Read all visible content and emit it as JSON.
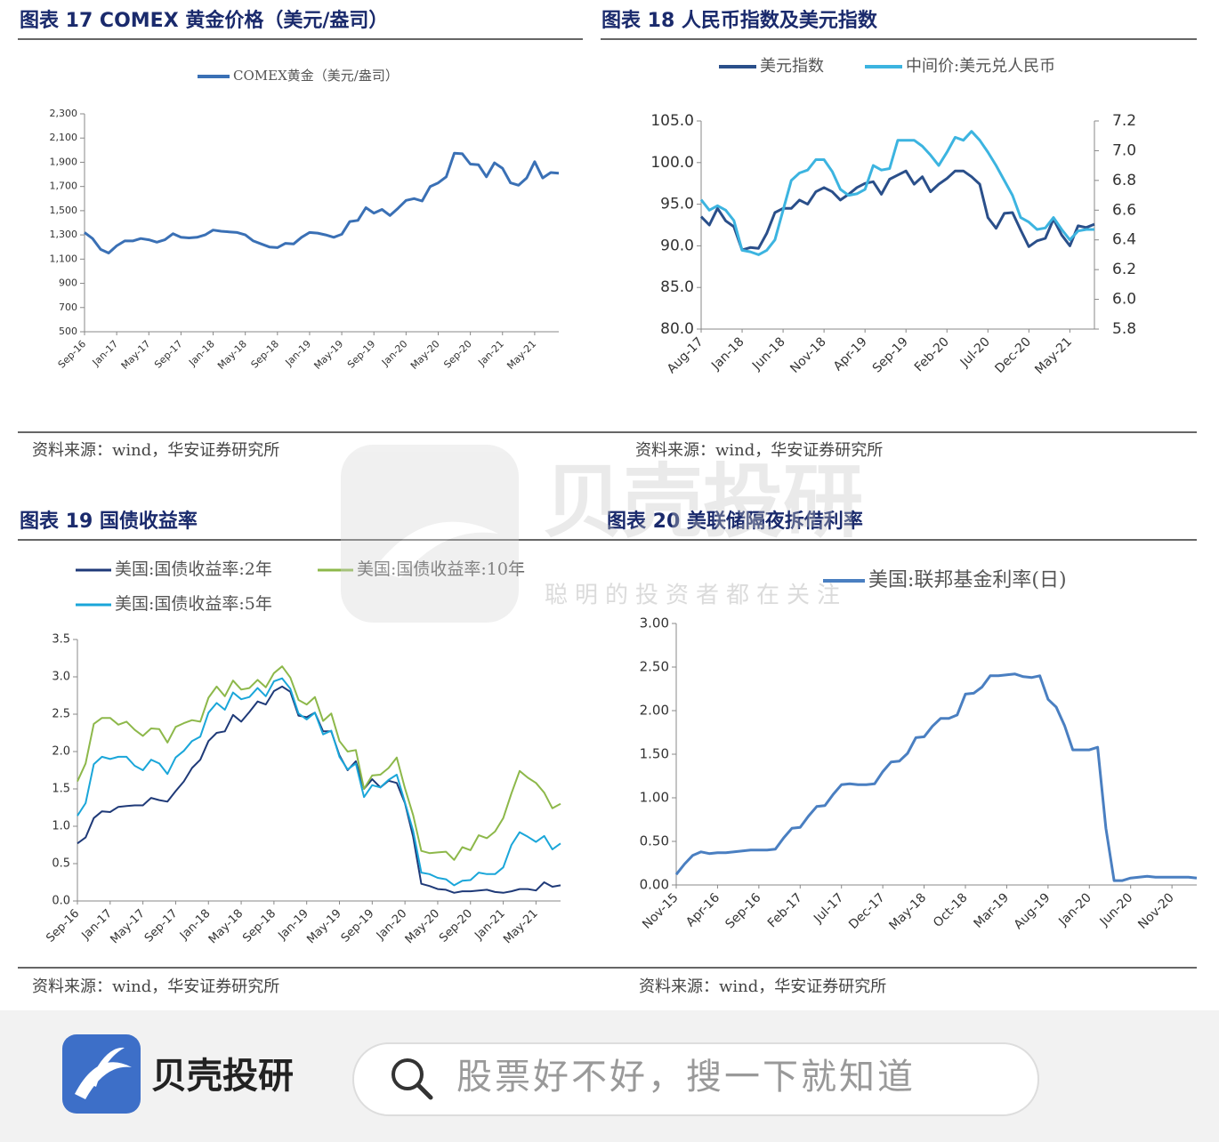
{
  "chart_data": [
    {
      "type": "line",
      "title": "图表 17 COMEX 黄金价格（美元/盎司）",
      "source": "资料来源：wind，华安证券研究所",
      "categories": [
        "Sep-16",
        null,
        null,
        null,
        "Jan-17",
        null,
        null,
        null,
        "May-17",
        null,
        null,
        null,
        "Sep-17",
        null,
        null,
        null,
        "Jan-18",
        null,
        null,
        null,
        "May-18",
        null,
        null,
        null,
        "Sep-18",
        null,
        null,
        null,
        "Jan-19",
        null,
        null,
        null,
        "May-19",
        null,
        null,
        null,
        "Sep-19",
        null,
        null,
        null,
        "Jan-20",
        null,
        null,
        null,
        "May-20",
        null,
        null,
        null,
        "Sep-20",
        null,
        null,
        null,
        "Jan-21",
        null,
        null,
        null,
        "May-21",
        null,
        null,
        null
      ],
      "series": [
        {
          "name": "COMEX黄金（美元/盎司）",
          "color": "#3a70b5",
          "values": [
            1320,
            1270,
            1180,
            1150,
            1210,
            1250,
            1250,
            1270,
            1260,
            1240,
            1260,
            1310,
            1280,
            1275,
            1280,
            1300,
            1340,
            1330,
            1325,
            1320,
            1300,
            1250,
            1225,
            1200,
            1195,
            1230,
            1225,
            1280,
            1320,
            1315,
            1300,
            1280,
            1305,
            1410,
            1420,
            1525,
            1480,
            1510,
            1460,
            1520,
            1585,
            1600,
            1580,
            1700,
            1730,
            1780,
            1975,
            1970,
            1885,
            1880,
            1780,
            1895,
            1850,
            1730,
            1710,
            1770,
            1905,
            1770,
            1815,
            1810
          ]
        }
      ],
      "ylim": [
        500,
        2300
      ],
      "yticks": [
        500,
        700,
        900,
        {
          "value": 1100,
          "label": "1,100"
        },
        {
          "value": 1300,
          "label": "1,300"
        },
        {
          "value": 1500,
          "label": "1,500"
        },
        {
          "value": 1700,
          "label": "1,700"
        },
        {
          "value": 1900,
          "label": "1,900"
        },
        {
          "value": 2100,
          "label": "2,100"
        },
        {
          "value": 2300,
          "label": "2,300"
        }
      ]
    },
    {
      "type": "line",
      "title": "图表 18 人民币指数及美元指数",
      "source": "资料来源：wind，华安证券研究所",
      "categories": [
        "Aug-17",
        null,
        null,
        null,
        null,
        "Jan-18",
        null,
        null,
        null,
        null,
        "Jun-18",
        null,
        null,
        null,
        null,
        "Nov-18",
        null,
        null,
        null,
        null,
        "Apr-19",
        null,
        null,
        null,
        null,
        "Sep-19",
        null,
        null,
        null,
        null,
        "Feb-20",
        null,
        null,
        null,
        null,
        "Jul-20",
        null,
        null,
        null,
        null,
        "Dec-20",
        null,
        null,
        null,
        null,
        "May-21",
        null,
        null,
        null
      ],
      "series": [
        {
          "name": "美元指数",
          "color": "#2a4f8a",
          "values": [
            93.5,
            92.5,
            94.5,
            93,
            92.3,
            89.5,
            89.8,
            89.7,
            91.5,
            94,
            94.5,
            94.5,
            95.5,
            95,
            96.5,
            97,
            96.5,
            95.5,
            96.2,
            97,
            97.5,
            97.7,
            96.2,
            98,
            98.5,
            99,
            97.4,
            98.3,
            96.5,
            97.4,
            98.1,
            99,
            99,
            98.3,
            97.4,
            93.4,
            92.1,
            93.9,
            94,
            91.9,
            89.9,
            90.6,
            90.9,
            93.2,
            91.3,
            90,
            92.4,
            92.2,
            92.6
          ]
        },
        {
          "name": "中间价:美元兑人民币",
          "color": "#3cb4e0",
          "axis": "y2",
          "values": [
            6.67,
            6.6,
            6.63,
            6.6,
            6.53,
            6.33,
            6.32,
            6.3,
            6.33,
            6.4,
            6.6,
            6.8,
            6.85,
            6.87,
            6.94,
            6.94,
            6.86,
            6.74,
            6.7,
            6.71,
            6.74,
            6.9,
            6.87,
            6.88,
            7.07,
            7.07,
            7.07,
            7.03,
            6.97,
            6.9,
            6.99,
            7.09,
            7.07,
            7.13,
            7.07,
            6.99,
            6.9,
            6.8,
            6.7,
            6.55,
            6.52,
            6.47,
            6.48,
            6.55,
            6.47,
            6.4,
            6.46,
            6.47,
            6.47
          ]
        }
      ],
      "ylim": [
        80,
        105
      ],
      "yticks": [
        {
          "value": 80,
          "label": "80.0"
        },
        {
          "value": 85,
          "label": "85.0"
        },
        {
          "value": 90,
          "label": "90.0"
        },
        {
          "value": 95,
          "label": "95.0"
        },
        {
          "value": 100,
          "label": "100.0"
        },
        {
          "value": 105,
          "label": "105.0"
        }
      ],
      "y2lim": [
        5.8,
        7.2
      ],
      "y2ticks": [
        5.8,
        {
          "value": 6,
          "label": "6.0"
        },
        6.2,
        6.4,
        6.6,
        6.8,
        {
          "value": 7,
          "label": "7.0"
        },
        7.2
      ]
    },
    {
      "type": "line",
      "title": "图表 19 国债收益率",
      "source": "资料来源：wind，华安证券研究所",
      "categories": [
        "Sep-16",
        null,
        null,
        null,
        "Jan-17",
        null,
        null,
        null,
        "May-17",
        null,
        null,
        null,
        "Sep-17",
        null,
        null,
        null,
        "Jan-18",
        null,
        null,
        null,
        "May-18",
        null,
        null,
        null,
        "Sep-18",
        null,
        null,
        null,
        "Jan-19",
        null,
        null,
        null,
        "May-19",
        null,
        null,
        null,
        "Sep-19",
        null,
        null,
        null,
        "Jan-20",
        null,
        null,
        null,
        "May-20",
        null,
        null,
        null,
        "Sep-20",
        null,
        null,
        null,
        "Jan-21",
        null,
        null,
        null,
        "May-21",
        null,
        null,
        null
      ],
      "series": [
        {
          "name": "美国:国债收益率:2年",
          "color": "#1f3a78",
          "values": [
            0.77,
            0.85,
            1.11,
            1.2,
            1.19,
            1.26,
            1.27,
            1.28,
            1.28,
            1.38,
            1.35,
            1.33,
            1.47,
            1.6,
            1.78,
            1.89,
            2.14,
            2.25,
            2.27,
            2.49,
            2.4,
            2.53,
            2.67,
            2.63,
            2.81,
            2.87,
            2.8,
            2.48,
            2.46,
            2.52,
            2.27,
            2.27,
            1.95,
            1.75,
            1.87,
            1.5,
            1.63,
            1.52,
            1.61,
            1.58,
            1.31,
            0.86,
            0.23,
            0.2,
            0.16,
            0.15,
            0.11,
            0.13,
            0.13,
            0.14,
            0.15,
            0.12,
            0.11,
            0.13,
            0.16,
            0.16,
            0.14,
            0.25,
            0.19,
            0.21
          ]
        },
        {
          "name": "美国:国债收益率:10年",
          "color": "#8db84a",
          "values": [
            1.6,
            1.84,
            2.37,
            2.45,
            2.45,
            2.36,
            2.4,
            2.29,
            2.21,
            2.31,
            2.3,
            2.12,
            2.33,
            2.38,
            2.42,
            2.4,
            2.72,
            2.87,
            2.74,
            2.95,
            2.83,
            2.85,
            2.96,
            2.86,
            3.05,
            3.14,
            2.99,
            2.69,
            2.63,
            2.73,
            2.41,
            2.51,
            2.14,
            2.0,
            2.02,
            1.5,
            1.68,
            1.69,
            1.78,
            1.92,
            1.51,
            1.15,
            0.67,
            0.64,
            0.65,
            0.66,
            0.55,
            0.72,
            0.68,
            0.88,
            0.84,
            0.93,
            1.11,
            1.44,
            1.74,
            1.65,
            1.58,
            1.45,
            1.24,
            1.3
          ]
        },
        {
          "name": "美国:国债收益率:5年",
          "color": "#1aa6d9",
          "values": [
            1.14,
            1.31,
            1.83,
            1.93,
            1.9,
            1.93,
            1.93,
            1.81,
            1.75,
            1.89,
            1.84,
            1.7,
            1.92,
            2.01,
            2.14,
            2.2,
            2.52,
            2.65,
            2.56,
            2.79,
            2.7,
            2.73,
            2.85,
            2.74,
            2.94,
            2.98,
            2.84,
            2.51,
            2.43,
            2.52,
            2.23,
            2.28,
            1.93,
            1.76,
            1.84,
            1.39,
            1.55,
            1.52,
            1.62,
            1.69,
            1.32,
            0.94,
            0.38,
            0.36,
            0.31,
            0.29,
            0.21,
            0.27,
            0.28,
            0.38,
            0.36,
            0.36,
            0.45,
            0.75,
            0.92,
            0.86,
            0.79,
            0.87,
            0.69,
            0.77
          ]
        }
      ],
      "ylim": [
        0,
        3.5
      ],
      "yticks": [
        {
          "value": 0,
          "label": "0.0"
        },
        0.5,
        {
          "value": 1,
          "label": "1.0"
        },
        1.5,
        {
          "value": 2,
          "label": "2.0"
        },
        2.5,
        {
          "value": 3,
          "label": "3.0"
        },
        3.5
      ]
    },
    {
      "type": "line",
      "title": "图表 20 美联储隔夜拆借利率",
      "source": "资料来源：wind，华安证券研究所",
      "categories": [
        "Nov-15",
        null,
        null,
        null,
        null,
        "Apr-16",
        null,
        null,
        null,
        null,
        "Sep-16",
        null,
        null,
        null,
        null,
        "Feb-17",
        null,
        null,
        null,
        null,
        "Jul-17",
        null,
        null,
        null,
        null,
        "Dec-17",
        null,
        null,
        null,
        null,
        "May-18",
        null,
        null,
        null,
        null,
        "Oct-18",
        null,
        null,
        null,
        null,
        "Mar-19",
        null,
        null,
        null,
        null,
        "Aug-19",
        null,
        null,
        null,
        null,
        "Jan-20",
        null,
        null,
        null,
        null,
        "Jun-20",
        null,
        null,
        null,
        null,
        "Nov-20",
        null,
        null,
        null
      ],
      "series": [
        {
          "name": "美国:联邦基金利率(日)",
          "color": "#4a7fc1",
          "values": [
            0.12,
            0.24,
            0.34,
            0.38,
            0.36,
            0.37,
            0.37,
            0.38,
            0.39,
            0.4,
            0.4,
            0.4,
            0.41,
            0.54,
            0.65,
            0.66,
            0.79,
            0.9,
            0.91,
            1.04,
            1.15,
            1.16,
            1.15,
            1.15,
            1.16,
            1.3,
            1.41,
            1.42,
            1.51,
            1.69,
            1.7,
            1.82,
            1.91,
            1.91,
            1.95,
            2.19,
            2.2,
            2.27,
            2.4,
            2.4,
            2.41,
            2.42,
            2.39,
            2.38,
            2.4,
            2.13,
            2.04,
            1.83,
            1.55,
            1.55,
            1.55,
            1.58,
            0.65,
            0.05,
            0.05,
            0.08,
            0.09,
            0.1,
            0.09,
            0.09,
            0.09,
            0.09,
            0.09,
            0.08
          ]
        }
      ],
      "ylim": [
        0,
        3
      ],
      "yticks": [
        {
          "value": 0,
          "label": "0.00"
        },
        {
          "value": 0.5,
          "label": "0.50"
        },
        {
          "value": 1,
          "label": "1.00"
        },
        {
          "value": 1.5,
          "label": "1.50"
        },
        {
          "value": 2,
          "label": "2.00"
        },
        {
          "value": 2.5,
          "label": "2.50"
        },
        {
          "value": 3,
          "label": "3.00"
        }
      ]
    }
  ],
  "watermark": {
    "brand": "贝壳投研",
    "slogan": "聪明的投资者都在关注"
  },
  "app_bar": {
    "brand": "贝壳投研",
    "search_placeholder": "股票好不好，搜一下就知道"
  }
}
